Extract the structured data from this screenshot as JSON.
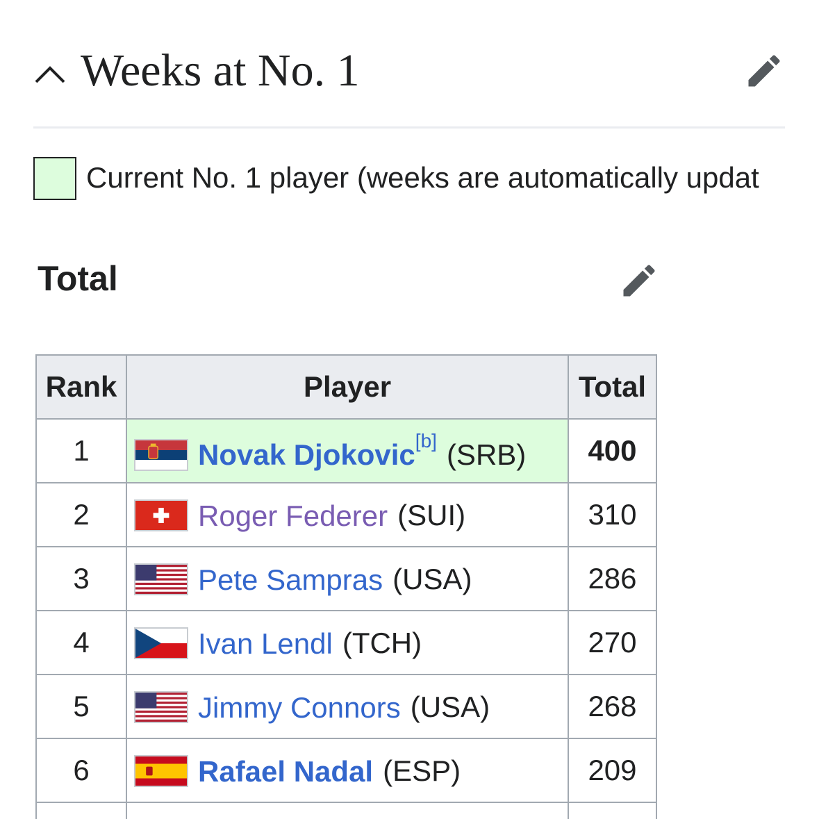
{
  "section": {
    "title": "Weeks at No. 1",
    "collapse_icon": "chevron-up-icon",
    "edit_icon": "pencil-icon"
  },
  "legend": {
    "text": "Current No. 1 player (weeks are automatically updat",
    "swatch_color": "#ddfddd"
  },
  "subsection": {
    "title": "Total",
    "edit_icon": "pencil-icon"
  },
  "table": {
    "headers": {
      "rank": "Rank",
      "player": "Player",
      "total": "Total"
    },
    "rows": [
      {
        "rank": "1",
        "player": "Novak Djokovic",
        "note": "[b]",
        "country": "(SRB)",
        "total": "400",
        "flag": "serbia-flag-icon",
        "current": true
      },
      {
        "rank": "2",
        "player": "Roger Federer",
        "country": "(SUI)",
        "total": "310",
        "flag": "switzerland-flag-icon"
      },
      {
        "rank": "3",
        "player": "Pete Sampras",
        "country": "(USA)",
        "total": "286",
        "flag": "usa-flag-icon"
      },
      {
        "rank": "4",
        "player": "Ivan Lendl",
        "country": "(TCH)",
        "total": "270",
        "flag": "czechoslovakia-flag-icon"
      },
      {
        "rank": "5",
        "player": "Jimmy Connors",
        "country": "(USA)",
        "total": "268",
        "flag": "usa-flag-icon"
      },
      {
        "rank": "6",
        "player": "Rafael Nadal",
        "country": "(ESP)",
        "total": "209",
        "flag": "spain-flag-icon"
      }
    ]
  },
  "colors": {
    "link": "#3366cc",
    "visited_link": "#795cb2",
    "current_highlight": "#ddfddd",
    "header_bg": "#eaecf0",
    "border": "#a2a9b1"
  }
}
